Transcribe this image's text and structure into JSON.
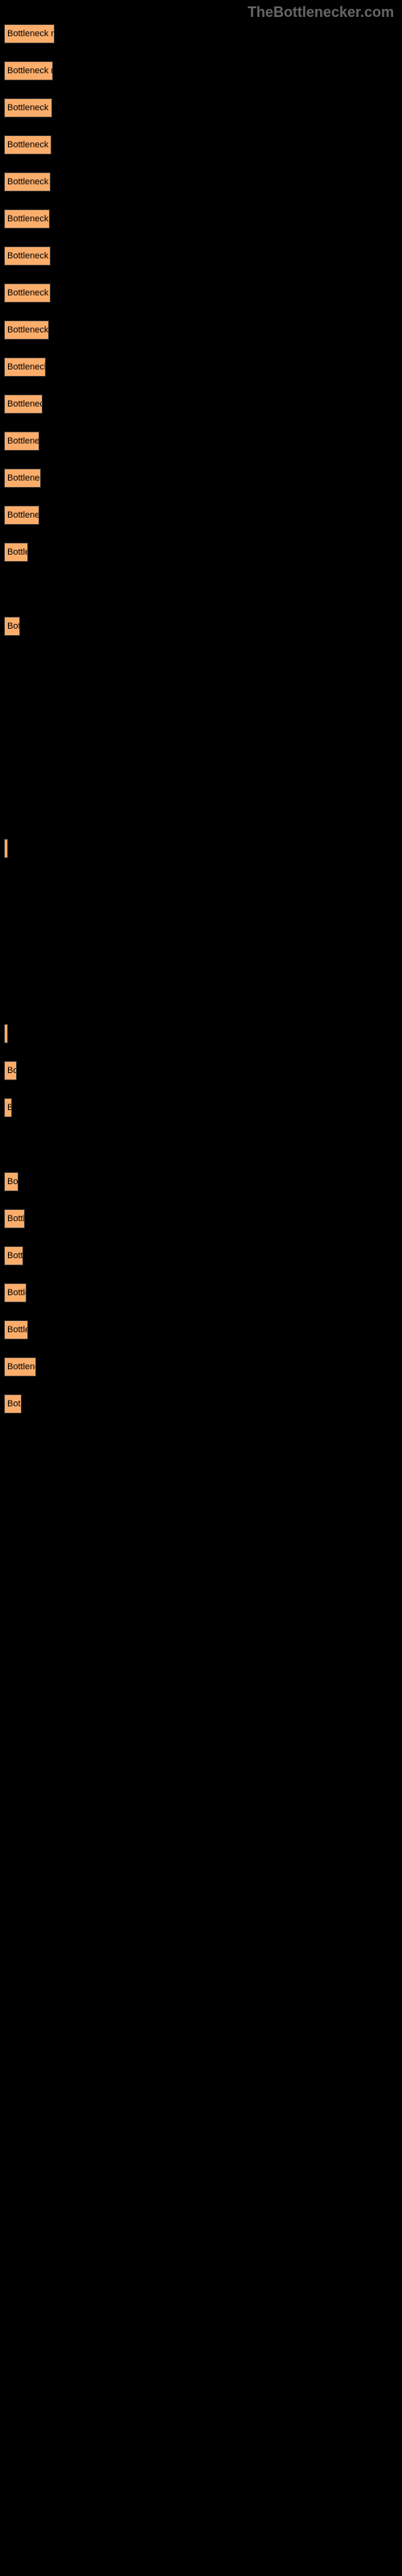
{
  "watermark": "TheBottlenecker.com",
  "chart": {
    "type": "bar",
    "bar_color": "#fbad6b",
    "bar_border_color": "#333333",
    "background_color": "#000000",
    "text_color": "#000000",
    "max_width": 68,
    "bars": [
      {
        "label": "Bottleneck res",
        "width": 63
      },
      {
        "label": "Bottleneck re",
        "width": 61
      },
      {
        "label": "Bottleneck re",
        "width": 60
      },
      {
        "label": "Bottleneck re",
        "width": 59
      },
      {
        "label": "Bottleneck re",
        "width": 58
      },
      {
        "label": "Bottleneck r",
        "width": 57
      },
      {
        "label": "Bottleneck re",
        "width": 58
      },
      {
        "label": "Bottleneck re",
        "width": 58
      },
      {
        "label": "Bottleneck r",
        "width": 56
      },
      {
        "label": "Bottleneck ",
        "width": 52
      },
      {
        "label": "Bottleneck",
        "width": 48
      },
      {
        "label": "Bottlenec",
        "width": 44
      },
      {
        "label": "Bottleneck",
        "width": 46
      },
      {
        "label": "Bottlenec",
        "width": 44
      },
      {
        "label": "Bottle",
        "width": 30
      },
      {
        "label": "",
        "width": 0,
        "spacer": true
      },
      {
        "label": "Bot",
        "width": 20
      },
      {
        "label": "",
        "width": 0,
        "spacer": true
      },
      {
        "label": "",
        "width": 0,
        "spacer": true
      },
      {
        "label": "",
        "width": 0,
        "spacer": true
      },
      {
        "label": "",
        "width": 0,
        "spacer": true
      },
      {
        "label": "",
        "width": 0,
        "spacer": true
      },
      {
        "label": "",
        "width": 4
      },
      {
        "label": "",
        "width": 0,
        "spacer": true
      },
      {
        "label": "",
        "width": 0,
        "spacer": true
      },
      {
        "label": "",
        "width": 0,
        "spacer": true
      },
      {
        "label": "",
        "width": 0,
        "spacer": true
      },
      {
        "label": "",
        "width": 3
      },
      {
        "label": "Bo",
        "width": 16
      },
      {
        "label": "B",
        "width": 10
      },
      {
        "label": "",
        "width": 0,
        "spacer": true
      },
      {
        "label": "Bo",
        "width": 18
      },
      {
        "label": "Bottl",
        "width": 26
      },
      {
        "label": "Bott",
        "width": 24
      },
      {
        "label": "Bottle",
        "width": 28
      },
      {
        "label": "Bottle",
        "width": 30
      },
      {
        "label": "Bottlene",
        "width": 40
      },
      {
        "label": "Bot",
        "width": 22
      }
    ]
  }
}
